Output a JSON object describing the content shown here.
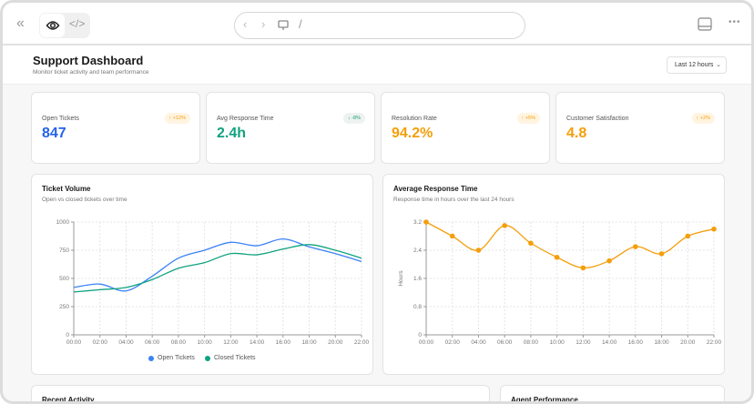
{
  "browser": {
    "address": "/"
  },
  "header": {
    "title": "Support Dashboard",
    "subtitle": "Monitor ticket activity and team performance",
    "range_select": "Last 12 hours"
  },
  "kpis": [
    {
      "label": "Open Tickets",
      "value": "847",
      "change": "↑ +12%",
      "color": "#2563eb",
      "badge_bg": "#fff4e0",
      "badge_color": "#f59e0b"
    },
    {
      "label": "Avg Response Time",
      "value": "2.4h",
      "change": "↓ -8%",
      "color": "#10a37f",
      "badge_bg": "#eef2f0",
      "badge_color": "#10a37f"
    },
    {
      "label": "Resolution Rate",
      "value": "94.2%",
      "change": "↑ +5%",
      "color": "#f59e0b",
      "badge_bg": "#fff4e0",
      "badge_color": "#f59e0b"
    },
    {
      "label": "Customer Satisfaction",
      "value": "4.8",
      "change": "↑ +2%",
      "color": "#f59e0b",
      "badge_bg": "#fff4e0",
      "badge_color": "#f59e0b"
    }
  ],
  "chart_data": [
    {
      "type": "line",
      "title": "Ticket Volume",
      "subtitle": "Open vs closed tickets over time",
      "categories": [
        "00:00",
        "02:00",
        "04:00",
        "06:00",
        "08:00",
        "10:00",
        "12:00",
        "14:00",
        "16:00",
        "18:00",
        "20:00",
        "22:00"
      ],
      "ylim": [
        0,
        1000
      ],
      "yticks": [
        "0",
        "250",
        "500",
        "750",
        "1000"
      ],
      "grid": true,
      "legend": "bottom",
      "series": [
        {
          "name": "Open Tickets",
          "color": "#3b82f6",
          "values": [
            420,
            450,
            390,
            520,
            680,
            750,
            820,
            790,
            850,
            780,
            720,
            650
          ]
        },
        {
          "name": "Closed Tickets",
          "color": "#10a37f",
          "values": [
            380,
            400,
            420,
            490,
            590,
            640,
            720,
            710,
            760,
            800,
            750,
            680
          ]
        }
      ]
    },
    {
      "type": "line",
      "title": "Average Response Time",
      "subtitle": "Response time in hours over the last 24 hours",
      "ylabel": "Hours",
      "categories": [
        "00:00",
        "02:00",
        "04:00",
        "06:00",
        "08:00",
        "10:00",
        "12:00",
        "14:00",
        "16:00",
        "18:00",
        "20:00",
        "22:00"
      ],
      "ylim": [
        0,
        3.2
      ],
      "yticks": [
        "0",
        "0.8",
        "1.6",
        "2.4",
        "3.2"
      ],
      "grid": true,
      "series": [
        {
          "color": "#f59e0b",
          "values": [
            3.2,
            2.8,
            2.4,
            3.1,
            2.6,
            2.2,
            1.9,
            2.1,
            2.5,
            2.3,
            2.8,
            3.0
          ]
        }
      ]
    }
  ],
  "bottom": {
    "activity_title": "Recent Activity",
    "agents_title": "Agent Performance"
  }
}
